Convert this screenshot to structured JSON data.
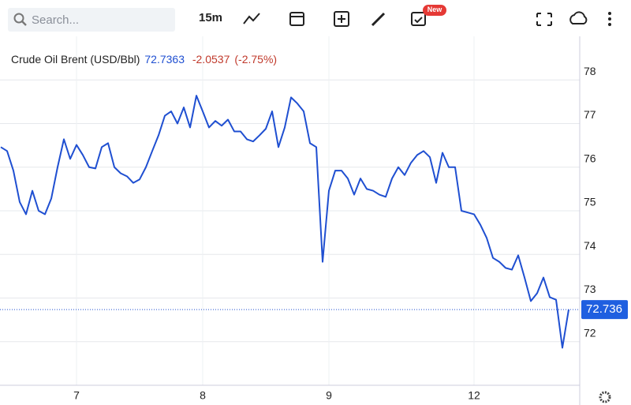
{
  "toolbar": {
    "search_placeholder": "Search...",
    "interval": "15m",
    "badge": "New"
  },
  "chart_data": {
    "type": "line",
    "title": "Crude Oil Brent (USD/Bbl)",
    "last_value": 72.7363,
    "change": -2.0537,
    "change_label": "(-2.75%)",
    "price_line": {
      "value": 72.7363,
      "label": "72.736"
    },
    "categories": [
      null,
      null,
      null,
      null,
      null,
      null,
      null,
      null,
      null,
      null,
      null,
      null,
      "7",
      null,
      null,
      null,
      null,
      null,
      null,
      null,
      null,
      null,
      null,
      null,
      null,
      null,
      null,
      null,
      null,
      null,
      null,
      null,
      "8",
      null,
      null,
      null,
      null,
      null,
      null,
      null,
      null,
      null,
      null,
      null,
      null,
      null,
      null,
      null,
      null,
      null,
      null,
      null,
      "9",
      null,
      null,
      null,
      null,
      null,
      null,
      null,
      null,
      null,
      null,
      null,
      null,
      null,
      null,
      null,
      null,
      null,
      null,
      null,
      null,
      null,
      null,
      "12",
      null,
      null,
      null,
      null,
      null,
      null,
      null,
      null,
      null,
      null,
      null,
      null,
      null,
      null,
      null
    ],
    "series": [
      {
        "name": "Crude Oil Brent",
        "color": "#1f4fd1",
        "values": [
          76.46,
          76.37,
          75.92,
          75.2,
          74.92,
          75.46,
          75.0,
          74.92,
          75.28,
          76.0,
          76.64,
          76.19,
          76.51,
          76.28,
          76.0,
          75.97,
          76.46,
          76.55,
          76.0,
          75.86,
          75.79,
          75.64,
          75.72,
          76.0,
          76.37,
          76.73,
          77.18,
          77.28,
          77.0,
          77.37,
          76.91,
          77.64,
          77.28,
          76.91,
          77.06,
          76.95,
          77.09,
          76.82,
          76.82,
          76.64,
          76.59,
          76.73,
          76.88,
          77.28,
          76.46,
          76.91,
          77.6,
          77.46,
          77.28,
          76.55,
          76.46,
          73.83,
          75.46,
          75.92,
          75.92,
          75.74,
          75.37,
          75.74,
          75.5,
          75.46,
          75.37,
          75.32,
          75.74,
          76.0,
          75.82,
          76.1,
          76.28,
          76.37,
          76.23,
          75.64,
          76.33,
          76.0,
          76.0,
          75.0,
          74.96,
          74.92,
          74.68,
          74.38,
          73.92,
          73.83,
          73.69,
          73.65,
          73.98,
          73.47,
          72.93,
          73.11,
          73.47,
          73.02,
          72.96,
          71.86,
          72.7363
        ]
      }
    ],
    "ylim": [
      71,
      79
    ],
    "yticks": [
      72,
      73,
      74,
      75,
      76,
      77,
      78
    ],
    "grid": true
  }
}
